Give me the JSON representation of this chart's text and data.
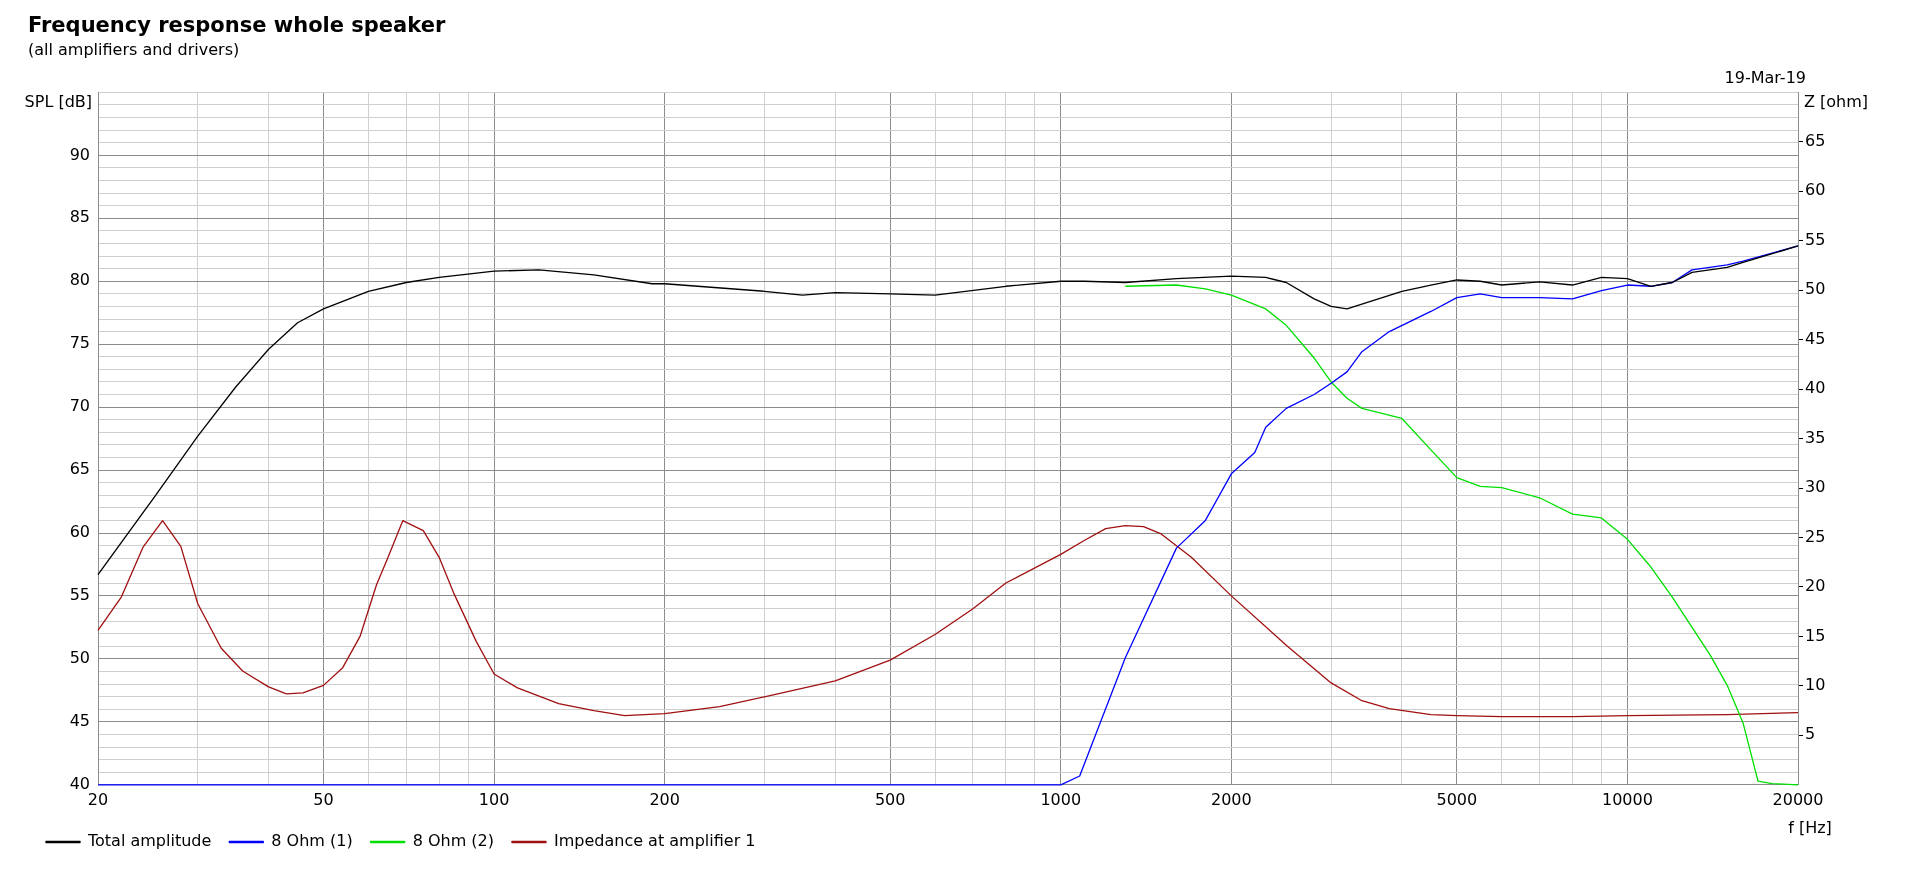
{
  "chart_data": {
    "type": "line",
    "title": "Frequency response whole speaker",
    "subtitle": "(all amplifiers and drivers)",
    "annotations": [
      "19-Mar-19"
    ],
    "xlabel": "f [Hz]",
    "ylabel": "SPL [dB]",
    "y2label": "Z [ohm]",
    "log": "x",
    "grid": true,
    "legend": "bottom",
    "marker": "none",
    "line_style": "solid",
    "xlim": [
      20,
      20000
    ],
    "xticks": [
      20,
      {
        "value": 30,
        "label": null
      },
      {
        "value": 40,
        "label": null
      },
      50,
      {
        "value": 60,
        "label": null
      },
      {
        "value": 70,
        "label": null
      },
      {
        "value": 80,
        "label": null
      },
      {
        "value": 90,
        "label": null
      },
      100,
      200,
      {
        "value": 300,
        "label": null
      },
      {
        "value": 400,
        "label": null
      },
      500,
      {
        "value": 600,
        "label": null
      },
      {
        "value": 700,
        "label": null
      },
      {
        "value": 800,
        "label": null
      },
      {
        "value": 900,
        "label": null
      },
      1000,
      2000,
      {
        "value": 3000,
        "label": null
      },
      {
        "value": 4000,
        "label": null
      },
      5000,
      {
        "value": 6000,
        "label": null
      },
      {
        "value": 7000,
        "label": null
      },
      {
        "value": 8000,
        "label": null
      },
      {
        "value": 9000,
        "label": null
      },
      10000,
      20000
    ],
    "ylim": [
      40,
      95
    ],
    "yticks": [
      40,
      {
        "value": 41,
        "label": null
      },
      {
        "value": 42,
        "label": null
      },
      {
        "value": 43,
        "label": null
      },
      {
        "value": 44,
        "label": null
      },
      45,
      {
        "value": 46,
        "label": null
      },
      {
        "value": 47,
        "label": null
      },
      {
        "value": 48,
        "label": null
      },
      {
        "value": 49,
        "label": null
      },
      50,
      {
        "value": 51,
        "label": null
      },
      {
        "value": 52,
        "label": null
      },
      {
        "value": 53,
        "label": null
      },
      {
        "value": 54,
        "label": null
      },
      55,
      {
        "value": 56,
        "label": null
      },
      {
        "value": 57,
        "label": null
      },
      {
        "value": 58,
        "label": null
      },
      {
        "value": 59,
        "label": null
      },
      60,
      {
        "value": 61,
        "label": null
      },
      {
        "value": 62,
        "label": null
      },
      {
        "value": 63,
        "label": null
      },
      {
        "value": 64,
        "label": null
      },
      65,
      {
        "value": 66,
        "label": null
      },
      {
        "value": 67,
        "label": null
      },
      {
        "value": 68,
        "label": null
      },
      {
        "value": 69,
        "label": null
      },
      70,
      {
        "value": 71,
        "label": null
      },
      {
        "value": 72,
        "label": null
      },
      {
        "value": 73,
        "label": null
      },
      {
        "value": 74,
        "label": null
      },
      75,
      {
        "value": 76,
        "label": null
      },
      {
        "value": 77,
        "label": null
      },
      {
        "value": 78,
        "label": null
      },
      {
        "value": 79,
        "label": null
      },
      80,
      {
        "value": 81,
        "label": null
      },
      {
        "value": 82,
        "label": null
      },
      {
        "value": 83,
        "label": null
      },
      {
        "value": 84,
        "label": null
      },
      85,
      {
        "value": 86,
        "label": null
      },
      {
        "value": 87,
        "label": null
      },
      {
        "value": 88,
        "label": null
      },
      {
        "value": 89,
        "label": null
      },
      90,
      {
        "value": 91,
        "label": null
      },
      {
        "value": 92,
        "label": null
      },
      {
        "value": 93,
        "label": null
      },
      {
        "value": 94,
        "label": null
      },
      {
        "value": 95,
        "label": null
      }
    ],
    "y2lim": [
      0,
      70
    ],
    "y2ticks": [
      5,
      10,
      15,
      20,
      25,
      30,
      35,
      40,
      45,
      50,
      55,
      60,
      65
    ],
    "series": [
      {
        "name": "Total amplitude",
        "color": "#000000",
        "x": [
          20,
          25,
          30,
          35,
          40,
          45,
          50,
          60,
          70,
          80,
          100,
          120,
          150,
          190,
          200,
          300,
          350,
          400,
          500,
          600,
          800,
          1000,
          1100,
          1300,
          1600,
          2000,
          2300,
          2500,
          2800,
          3000,
          3200,
          4000,
          4500,
          5000,
          5500,
          6000,
          7000,
          8000,
          9000,
          10000,
          11000,
          12000,
          13000,
          15000,
          16000,
          20000
        ],
        "values": [
          56.7,
          62.7,
          67.7,
          71.6,
          74.6,
          76.7,
          77.8,
          79.2,
          79.9,
          80.3,
          80.8,
          80.9,
          80.5,
          79.8,
          79.8,
          79.2,
          78.9,
          79.1,
          79.0,
          78.9,
          79.6,
          80.0,
          80.0,
          79.9,
          80.2,
          80.4,
          80.3,
          79.9,
          78.6,
          78.0,
          77.8,
          79.2,
          79.7,
          80.1,
          80.0,
          79.7,
          79.95,
          79.7,
          80.3,
          80.2,
          79.6,
          79.9,
          80.7,
          81.1,
          81.5,
          82.8
        ]
      },
      {
        "name": "8 Ohm (1)",
        "color": "#0000ff",
        "x": [
          20,
          1000,
          1080,
          1300,
          1600,
          1800,
          2000,
          2200,
          2300,
          2500,
          2800,
          3000,
          3200,
          3400,
          3800,
          4500,
          5000,
          5500,
          6000,
          7000,
          8000,
          9000,
          10000,
          11000,
          12000,
          13000,
          15000,
          16000,
          20000
        ],
        "values": [
          40,
          40,
          40.7,
          50.1,
          58.8,
          61.0,
          64.7,
          66.4,
          68.4,
          69.9,
          71.0,
          71.9,
          72.8,
          74.4,
          76.0,
          77.6,
          78.7,
          79.0,
          78.7,
          78.7,
          78.6,
          79.25,
          79.7,
          79.6,
          79.9,
          80.9,
          81.3,
          81.6,
          82.8
        ]
      },
      {
        "name": "8 Ohm (2)",
        "color": "#00e000",
        "x": [
          1300,
          1600,
          1800,
          2000,
          2300,
          2500,
          2800,
          3000,
          3200,
          3400,
          4000,
          4500,
          5000,
          5500,
          6000,
          7000,
          8000,
          9000,
          10000,
          11000,
          12000,
          14000,
          15000,
          16000,
          17000,
          18000,
          20000
        ],
        "values": [
          79.6,
          79.7,
          79.4,
          78.9,
          77.8,
          76.5,
          73.9,
          72.0,
          70.7,
          69.9,
          69.1,
          66.6,
          64.4,
          63.7,
          63.6,
          62.8,
          61.5,
          61.2,
          59.5,
          57.3,
          54.9,
          50.3,
          47.9,
          44.9,
          40.3,
          40.1,
          40.0
        ]
      },
      {
        "name": "Impedance at amplifier 1",
        "color": "#a01010",
        "axis": "y2",
        "x": [
          20,
          22,
          24,
          26,
          28,
          30,
          33,
          36,
          40,
          43,
          46,
          50,
          54,
          58,
          62,
          65,
          69,
          75,
          80,
          85,
          93,
          100,
          110,
          130,
          150,
          170,
          200,
          250,
          300,
          400,
          500,
          600,
          700,
          800,
          1000,
          1100,
          1200,
          1300,
          1400,
          1500,
          1700,
          2000,
          2500,
          3000,
          3400,
          3800,
          4500,
          5000,
          6000,
          8000,
          10000,
          15000,
          20000
        ],
        "values": [
          15.6,
          19.0,
          24.0,
          26.7,
          24.1,
          18.3,
          13.8,
          11.5,
          9.9,
          9.2,
          9.3,
          10.05,
          11.8,
          15.0,
          20.2,
          23.0,
          26.7,
          25.7,
          23.0,
          19.3,
          14.5,
          11.2,
          9.8,
          8.2,
          7.5,
          7.0,
          7.2,
          7.9,
          8.9,
          10.5,
          12.6,
          15.2,
          17.8,
          20.4,
          23.3,
          24.7,
          25.9,
          26.2,
          26.1,
          25.4,
          23.0,
          19.1,
          14.1,
          10.3,
          8.5,
          7.7,
          7.1,
          7.0,
          6.9,
          6.9,
          7.0,
          7.1,
          7.3
        ]
      }
    ]
  }
}
